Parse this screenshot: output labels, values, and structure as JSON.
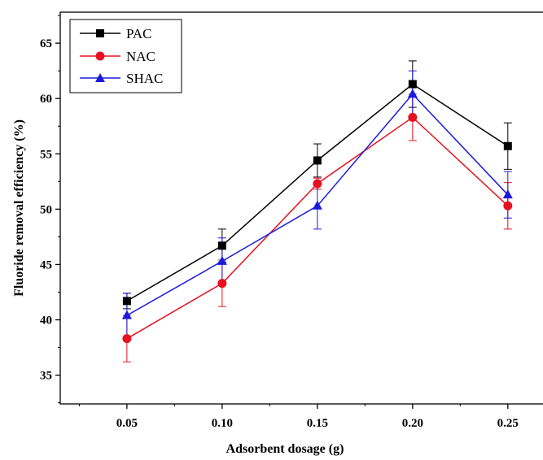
{
  "chart_data": {
    "type": "line",
    "xlabel": "Adsorbent dosage (g)",
    "ylabel": "Fluoride removal efficiency (%)",
    "x": [
      0.05,
      0.1,
      0.15,
      0.2,
      0.25
    ],
    "x_tick_labels": [
      "0.05",
      "0.10",
      "0.15",
      "0.20",
      "0.25"
    ],
    "xlim": [
      0.015,
      0.28
    ],
    "ylim": [
      32.4,
      67.8
    ],
    "y_ticks": [
      35,
      40,
      45,
      50,
      55,
      60,
      65
    ],
    "y_tick_labels": [
      "35",
      "40",
      "45",
      "50",
      "55",
      "60",
      "65"
    ],
    "grid": false,
    "legend_position": "top-left",
    "series": [
      {
        "name": "PAC",
        "color": "#000000",
        "marker": "square",
        "values": [
          41.7,
          46.7,
          54.4,
          61.3,
          55.7
        ],
        "error": [
          0.7,
          1.5,
          1.5,
          2.1,
          2.1
        ]
      },
      {
        "name": "NAC",
        "color": "#e8101e",
        "marker": "circle",
        "values": [
          38.3,
          43.3,
          52.3,
          58.3,
          50.3
        ],
        "error": [
          2.1,
          2.1,
          0.5,
          2.1,
          2.1
        ]
      },
      {
        "name": "SHAC",
        "color": "#1a1adc",
        "marker": "triangle",
        "values": [
          40.4,
          45.3,
          50.3,
          60.4,
          51.3
        ],
        "error": [
          2.0,
          2.1,
          2.1,
          2.1,
          2.1
        ]
      }
    ]
  }
}
